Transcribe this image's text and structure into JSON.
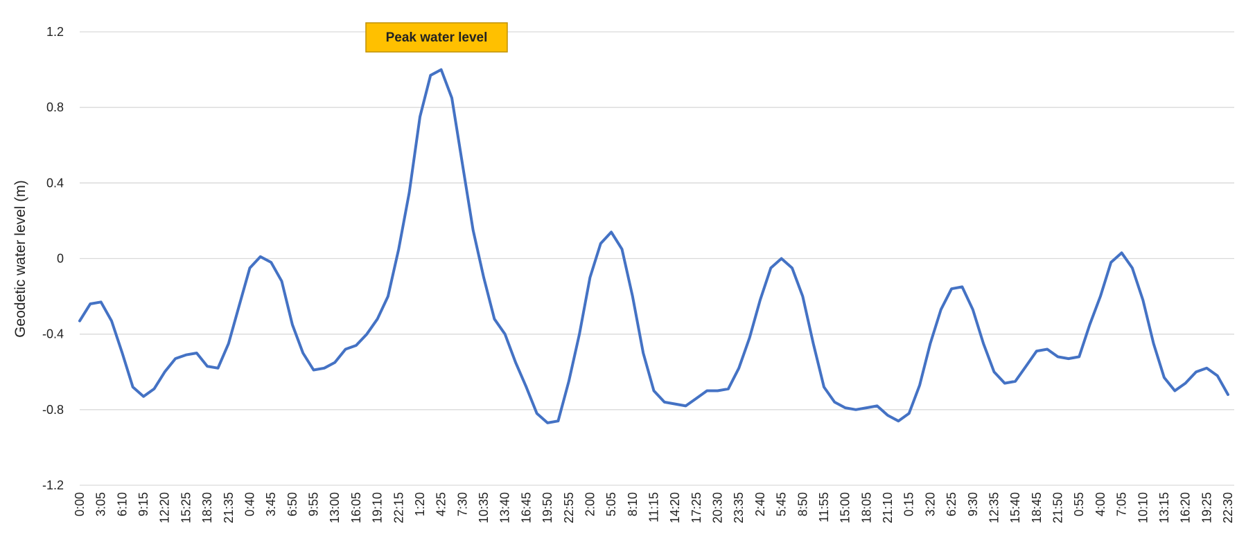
{
  "chart_data": {
    "type": "line",
    "y_label": "Geodetic water level (m)",
    "annotation": "Peak water level",
    "categories": [
      "0:00",
      null,
      "3:05",
      null,
      "6:10",
      null,
      "9:15",
      null,
      "12:20",
      null,
      "15:25",
      null,
      "18:30",
      null,
      "21:35",
      null,
      "0:40",
      null,
      "3:45",
      null,
      "6:50",
      null,
      "9:55",
      null,
      "13:00",
      null,
      "16:05",
      null,
      "19:10",
      null,
      "22:15",
      null,
      "1:20",
      null,
      "4:25",
      null,
      "7:30",
      null,
      "10:35",
      null,
      "13:40",
      null,
      "16:45",
      null,
      "19:50",
      null,
      "22:55",
      null,
      "2:00",
      null,
      "5:05",
      null,
      "8:10",
      null,
      "11:15",
      null,
      "14:20",
      null,
      "17:25",
      null,
      "20:30",
      null,
      "23:35",
      null,
      "2:40",
      null,
      "5:45",
      null,
      "8:50",
      null,
      "11:55",
      null,
      "15:00",
      null,
      "18:05",
      null,
      "21:10",
      null,
      "0:15",
      null,
      "3:20",
      null,
      "6:25",
      null,
      "9:30",
      null,
      "12:35",
      null,
      "15:40",
      null,
      "18:45",
      null,
      "21:50",
      null,
      "0:55",
      null,
      "4:00",
      null,
      "7:05",
      null,
      "10:10",
      null,
      "13:15",
      null,
      "16:20",
      null,
      "19:25",
      null,
      "22:30"
    ],
    "series": [
      {
        "name": "Geodetic water level",
        "color": "#4472c4",
        "values": [
          -0.33,
          -0.24,
          -0.23,
          -0.33,
          -0.5,
          -0.68,
          -0.73,
          -0.69,
          -0.6,
          -0.53,
          -0.51,
          -0.5,
          -0.57,
          -0.58,
          -0.45,
          -0.25,
          -0.05,
          0.01,
          -0.02,
          -0.12,
          -0.35,
          -0.5,
          -0.59,
          -0.58,
          -0.55,
          -0.48,
          -0.46,
          -0.4,
          -0.32,
          -0.2,
          0.05,
          0.35,
          0.75,
          0.97,
          1.0,
          0.85,
          0.5,
          0.15,
          -0.1,
          -0.32,
          -0.4,
          -0.55,
          -0.68,
          -0.82,
          -0.87,
          -0.86,
          -0.65,
          -0.4,
          -0.1,
          0.08,
          0.14,
          0.05,
          -0.2,
          -0.5,
          -0.7,
          -0.76,
          -0.77,
          -0.78,
          -0.74,
          -0.7,
          -0.7,
          -0.69,
          -0.58,
          -0.42,
          -0.22,
          -0.05,
          0.0,
          -0.05,
          -0.2,
          -0.45,
          -0.68,
          -0.76,
          -0.79,
          -0.8,
          -0.79,
          -0.78,
          -0.83,
          -0.86,
          -0.82,
          -0.67,
          -0.45,
          -0.27,
          -0.16,
          -0.15,
          -0.27,
          -0.45,
          -0.6,
          -0.66,
          -0.65,
          -0.57,
          -0.49,
          -0.48,
          -0.52,
          -0.53,
          -0.52,
          -0.35,
          -0.2,
          -0.02,
          0.03,
          -0.05,
          -0.22,
          -0.45,
          -0.63,
          -0.7,
          -0.66,
          -0.6,
          -0.58,
          -0.62,
          -0.72
        ]
      }
    ],
    "ylim": [
      -1.2,
      1.2
    ],
    "yticks": [
      -1.2,
      -0.8,
      -0.4,
      0,
      0.4,
      0.8,
      1.2
    ],
    "grid": true
  }
}
